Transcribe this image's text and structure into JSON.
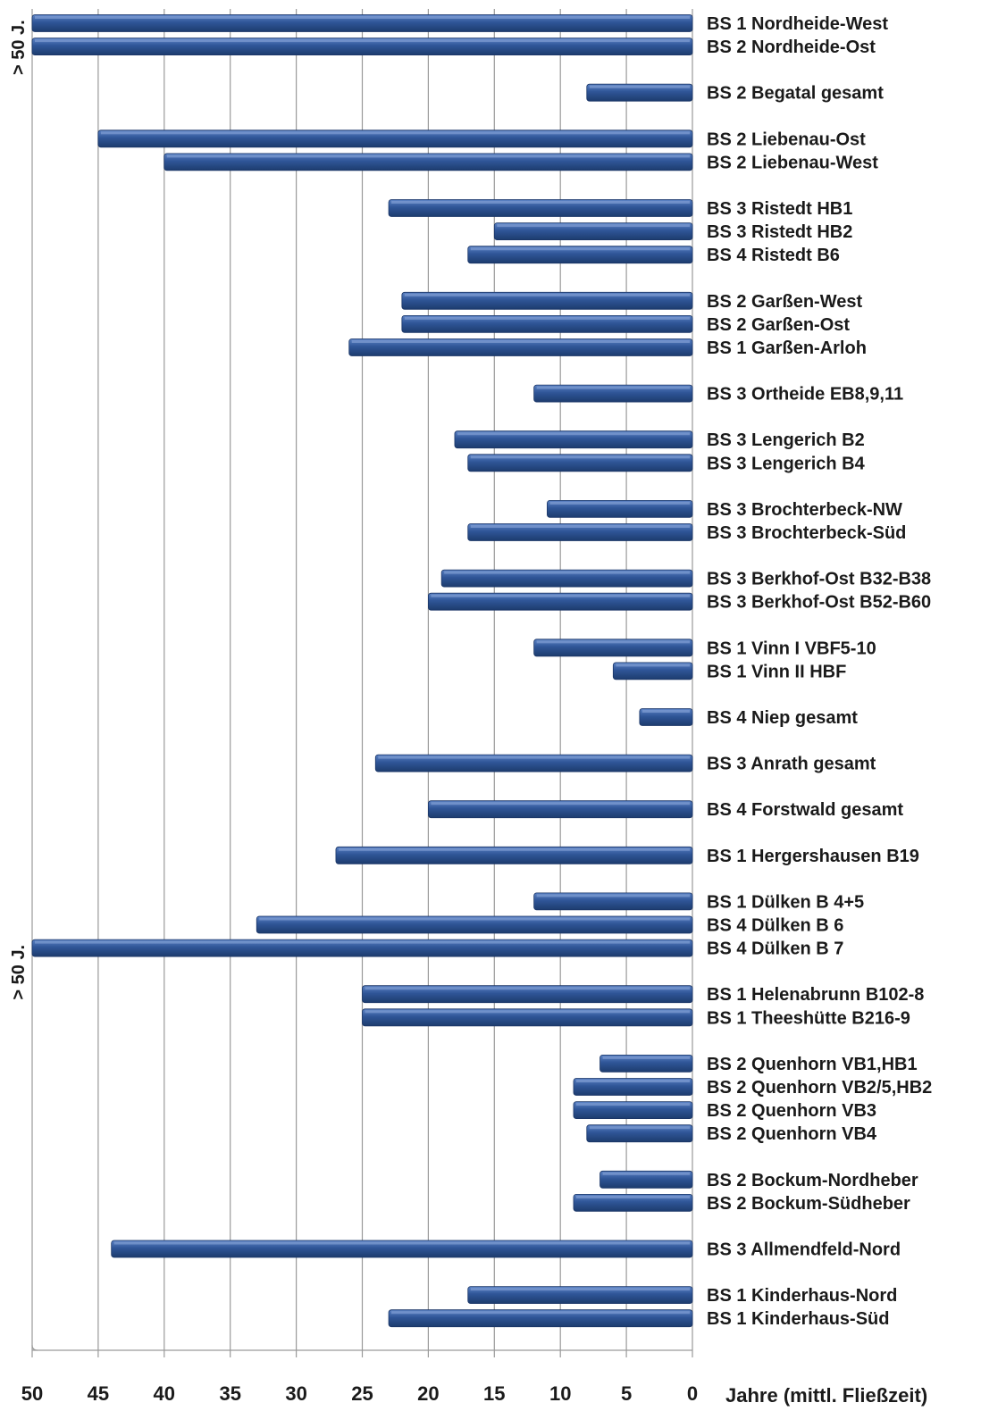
{
  "chart_data": {
    "type": "bar",
    "orientation": "horizontal",
    "x_direction": "reversed",
    "xlabel": "Jahre (mittl. Fließzeit)",
    "xlim": [
      0,
      50
    ],
    "xticks": [
      "50",
      "45",
      "40",
      "35",
      "30",
      "25",
      "20",
      "15",
      "10",
      "5",
      "0"
    ],
    "grid": "vertical",
    "bar_color": "#2f5597",
    "annotations": [
      {
        "text": "> 50 J.",
        "category": "BS 1 Nordheide-West"
      },
      {
        "text": "> 50 J.",
        "category": "BS 4 Dülken B 7"
      }
    ],
    "bars": [
      {
        "label": "BS 1  Nordheide-West",
        "value": 50,
        "group": 0
      },
      {
        "label": "BS 2  Nordheide-Ost",
        "value": 50,
        "group": 0
      },
      {
        "label": "BS 2  Begatal gesamt",
        "value": 8,
        "group": 1
      },
      {
        "label": "BS 2  Liebenau-Ost",
        "value": 45,
        "group": 2
      },
      {
        "label": "BS 2  Liebenau-West",
        "value": 40,
        "group": 2
      },
      {
        "label": "BS 3  Ristedt HB1",
        "value": 23,
        "group": 3
      },
      {
        "label": "BS 3  Ristedt HB2",
        "value": 15,
        "group": 3
      },
      {
        "label": "BS 4  Ristedt B6",
        "value": 17,
        "group": 3
      },
      {
        "label": "BS 2  Garßen-West",
        "value": 22,
        "group": 4
      },
      {
        "label": "BS 2  Garßen-Ost",
        "value": 22,
        "group": 4
      },
      {
        "label": "BS 1  Garßen-Arloh",
        "value": 26,
        "group": 4
      },
      {
        "label": "BS 3  Ortheide EB8,9,11",
        "value": 12,
        "group": 5
      },
      {
        "label": "BS 3  Lengerich B2",
        "value": 18,
        "group": 6
      },
      {
        "label": "BS 3  Lengerich B4",
        "value": 17,
        "group": 6
      },
      {
        "label": "BS 3  Brochterbeck-NW",
        "value": 11,
        "group": 7
      },
      {
        "label": "BS 3  Brochterbeck-Süd",
        "value": 17,
        "group": 7
      },
      {
        "label": "BS 3  Berkhof-Ost B32-B38",
        "value": 19,
        "group": 8
      },
      {
        "label": "BS 3  Berkhof-Ost B52-B60",
        "value": 20,
        "group": 8
      },
      {
        "label": "BS 1  Vinn I  VBF5-10",
        "value": 12,
        "group": 9
      },
      {
        "label": "BS 1  Vinn II HBF",
        "value": 6,
        "group": 9
      },
      {
        "label": "BS 4  Niep gesamt",
        "value": 4,
        "group": 10
      },
      {
        "label": "BS 3  Anrath gesamt",
        "value": 24,
        "group": 11
      },
      {
        "label": "BS 4  Forstwald gesamt",
        "value": 20,
        "group": 12
      },
      {
        "label": "BS 1  Hergershausen B19",
        "value": 27,
        "group": 13
      },
      {
        "label": "BS 1  Dülken B 4+5",
        "value": 12,
        "group": 14
      },
      {
        "label": "BS 4  Dülken B 6",
        "value": 33,
        "group": 14
      },
      {
        "label": "BS 4  Dülken B 7",
        "value": 50,
        "group": 14
      },
      {
        "label": "BS 1  Helenabrunn B102-8",
        "value": 25,
        "group": 15
      },
      {
        "label": "BS 1  Theeshütte B216-9",
        "value": 25,
        "group": 15
      },
      {
        "label": "BS 2  Quenhorn VB1,HB1",
        "value": 7,
        "group": 16
      },
      {
        "label": "BS 2  Quenhorn VB2/5,HB2",
        "value": 9,
        "group": 16
      },
      {
        "label": "BS 2  Quenhorn VB3",
        "value": 9,
        "group": 16
      },
      {
        "label": "BS 2  Quenhorn VB4",
        "value": 8,
        "group": 16
      },
      {
        "label": "BS 2  Bockum-Nordheber",
        "value": 7,
        "group": 17
      },
      {
        "label": "BS 2  Bockum-Südheber",
        "value": 9,
        "group": 17
      },
      {
        "label": "BS 3  Allmendfeld-Nord",
        "value": 44,
        "group": 18
      },
      {
        "label": "BS 1  Kinderhaus-Nord",
        "value": 17,
        "group": 19
      },
      {
        "label": "BS 1  Kinderhaus-Süd",
        "value": 23,
        "group": 19
      }
    ]
  }
}
